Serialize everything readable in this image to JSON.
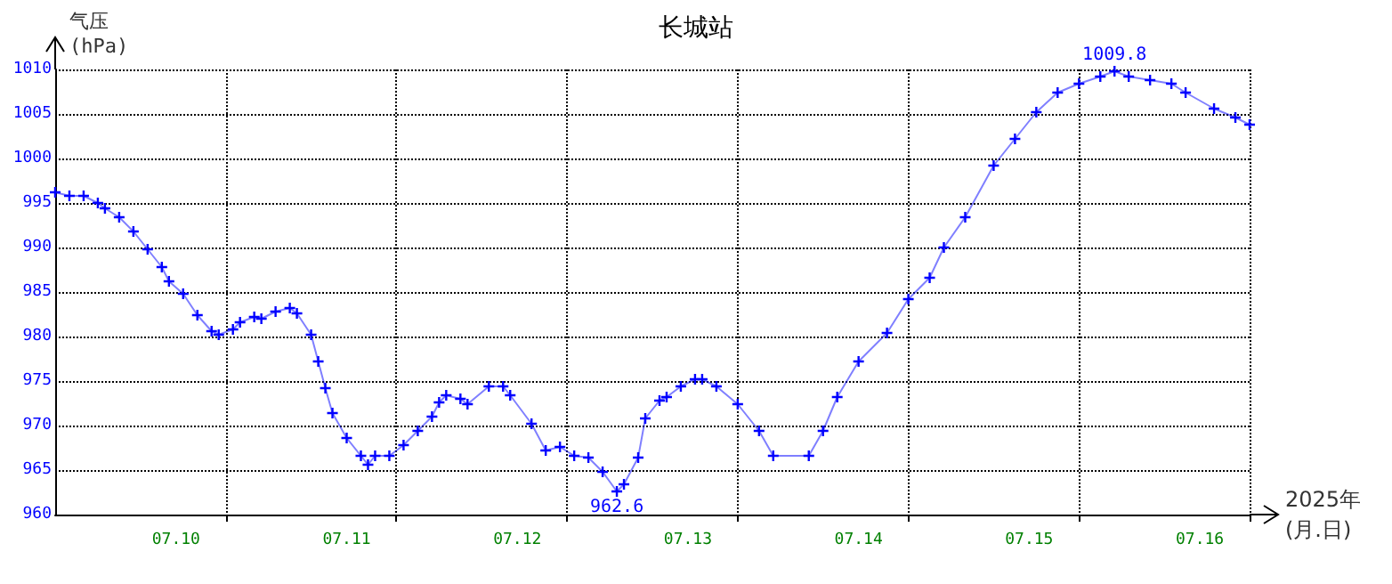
{
  "chart_data": {
    "type": "line",
    "title": "长城站",
    "xlabel": "2025年\n(月.日)",
    "ylabel": "气压\n(hPa)",
    "x": [
      "2025-07-09T19:00",
      "2025-07-09T21:00",
      "2025-07-09T23:00",
      "2025-07-10T01:00",
      "2025-07-10T02:00",
      "2025-07-10T04:00",
      "2025-07-10T06:00",
      "2025-07-10T08:00",
      "2025-07-10T10:00",
      "2025-07-10T11:00",
      "2025-07-10T13:00",
      "2025-07-10T15:00",
      "2025-07-10T17:00",
      "2025-07-10T18:00",
      "2025-07-10T20:00",
      "2025-07-10T21:00",
      "2025-07-10T23:00",
      "2025-07-11T00:00",
      "2025-07-11T02:00",
      "2025-07-11T04:00",
      "2025-07-11T05:00",
      "2025-07-11T07:00",
      "2025-07-11T08:00",
      "2025-07-11T09:00",
      "2025-07-11T10:00",
      "2025-07-11T12:00",
      "2025-07-11T14:00",
      "2025-07-11T15:00",
      "2025-07-11T16:00",
      "2025-07-11T18:00",
      "2025-07-11T20:00",
      "2025-07-11T22:00",
      "2025-07-12T00:00",
      "2025-07-12T01:00",
      "2025-07-12T02:00",
      "2025-07-12T04:00",
      "2025-07-12T05:00",
      "2025-07-12T08:00",
      "2025-07-12T10:00",
      "2025-07-12T11:00",
      "2025-07-12T14:00",
      "2025-07-12T16:00",
      "2025-07-12T18:00",
      "2025-07-12T20:00",
      "2025-07-12T22:00",
      "2025-07-13T00:00",
      "2025-07-13T02:00",
      "2025-07-13T03:00",
      "2025-07-13T05:00",
      "2025-07-13T06:00",
      "2025-07-13T08:00",
      "2025-07-13T09:00",
      "2025-07-13T11:00",
      "2025-07-13T13:00",
      "2025-07-13T14:00",
      "2025-07-13T16:00",
      "2025-07-13T19:00",
      "2025-07-13T22:00",
      "2025-07-14T00:00",
      "2025-07-14T05:00",
      "2025-07-14T07:00",
      "2025-07-14T09:00",
      "2025-07-14T12:00",
      "2025-07-14T16:00",
      "2025-07-14T19:00",
      "2025-07-14T22:00",
      "2025-07-15T00:00",
      "2025-07-15T03:00",
      "2025-07-15T07:00",
      "2025-07-15T10:00",
      "2025-07-15T13:00",
      "2025-07-15T16:00",
      "2025-07-15T19:00",
      "2025-07-15T22:00",
      "2025-07-16T00:00",
      "2025-07-16T02:00",
      "2025-07-16T05:00",
      "2025-07-16T08:00",
      "2025-07-16T10:00",
      "2025-07-16T14:00",
      "2025-07-16T17:00",
      "2025-07-16T19:00"
    ],
    "series": [
      {
        "color": "#0000ff",
        "values": [
          996.2,
          995.8,
          995.8,
          995,
          994.4,
          993.4,
          991.8,
          989.8,
          987.8,
          986.2,
          984.8,
          982.4,
          980.6,
          980.2,
          980.8,
          981.6,
          982.2,
          982,
          982.8,
          983.2,
          982.6,
          980.2,
          977.2,
          974.2,
          971.4,
          968.6,
          966.6,
          965.6,
          966.6,
          966.6,
          967.8,
          969.4,
          971,
          972.6,
          973.4,
          973,
          972.4,
          974.4,
          974.4,
          973.4,
          970.2,
          967.2,
          967.6,
          966.6,
          966.4,
          964.8,
          962.6,
          963.4,
          966.4,
          970.8,
          972.8,
          973.2,
          974.4,
          975.2,
          975.2,
          974.4,
          972.4,
          969.4,
          966.6,
          966.6,
          969.4,
          973.2,
          977.2,
          980.4,
          984.2,
          986.6,
          990,
          993.4,
          999.2,
          1002.2,
          1005.2,
          1007.4,
          1008.4,
          1009.2,
          1009.8,
          1009.2,
          1008.8,
          1008.4,
          1007.4,
          1005.6,
          1004.6,
          1003.8
        ]
      }
    ],
    "xlim": [
      "2025-07-09T19:00",
      "2025-07-16T19:00"
    ],
    "xticks": [
      {
        "value": "2025-07-10T12:00",
        "label": "07.10"
      },
      {
        "value": "2025-07-10T19:00",
        "label": null
      },
      {
        "value": "2025-07-11T12:00",
        "label": "07.11"
      },
      {
        "value": "2025-07-11T19:00",
        "label": null
      },
      {
        "value": "2025-07-12T12:00",
        "label": "07.12"
      },
      {
        "value": "2025-07-12T19:00",
        "label": null
      },
      {
        "value": "2025-07-13T12:00",
        "label": "07.13"
      },
      {
        "value": "2025-07-13T19:00",
        "label": null
      },
      {
        "value": "2025-07-14T12:00",
        "label": "07.14"
      },
      {
        "value": "2025-07-14T19:00",
        "label": null
      },
      {
        "value": "2025-07-15T12:00",
        "label": "07.15"
      },
      {
        "value": "2025-07-15T19:00",
        "label": null
      },
      {
        "value": "2025-07-16T12:00",
        "label": "07.16"
      },
      {
        "value": "2025-07-16T19:00",
        "label": null
      }
    ],
    "ylim": [
      960,
      1010
    ],
    "yticks": [
      960,
      965,
      970,
      975,
      980,
      985,
      990,
      995,
      1000,
      1005,
      1010
    ],
    "annotations": [
      {
        "text": "962.6",
        "x": "2025-07-13T02:00",
        "y": 962.6
      },
      {
        "text": "1009.8",
        "x": "2025-07-16T00:00",
        "y": 1009.8
      }
    ],
    "grid": true,
    "marker": "cross",
    "line_style": "solid"
  }
}
